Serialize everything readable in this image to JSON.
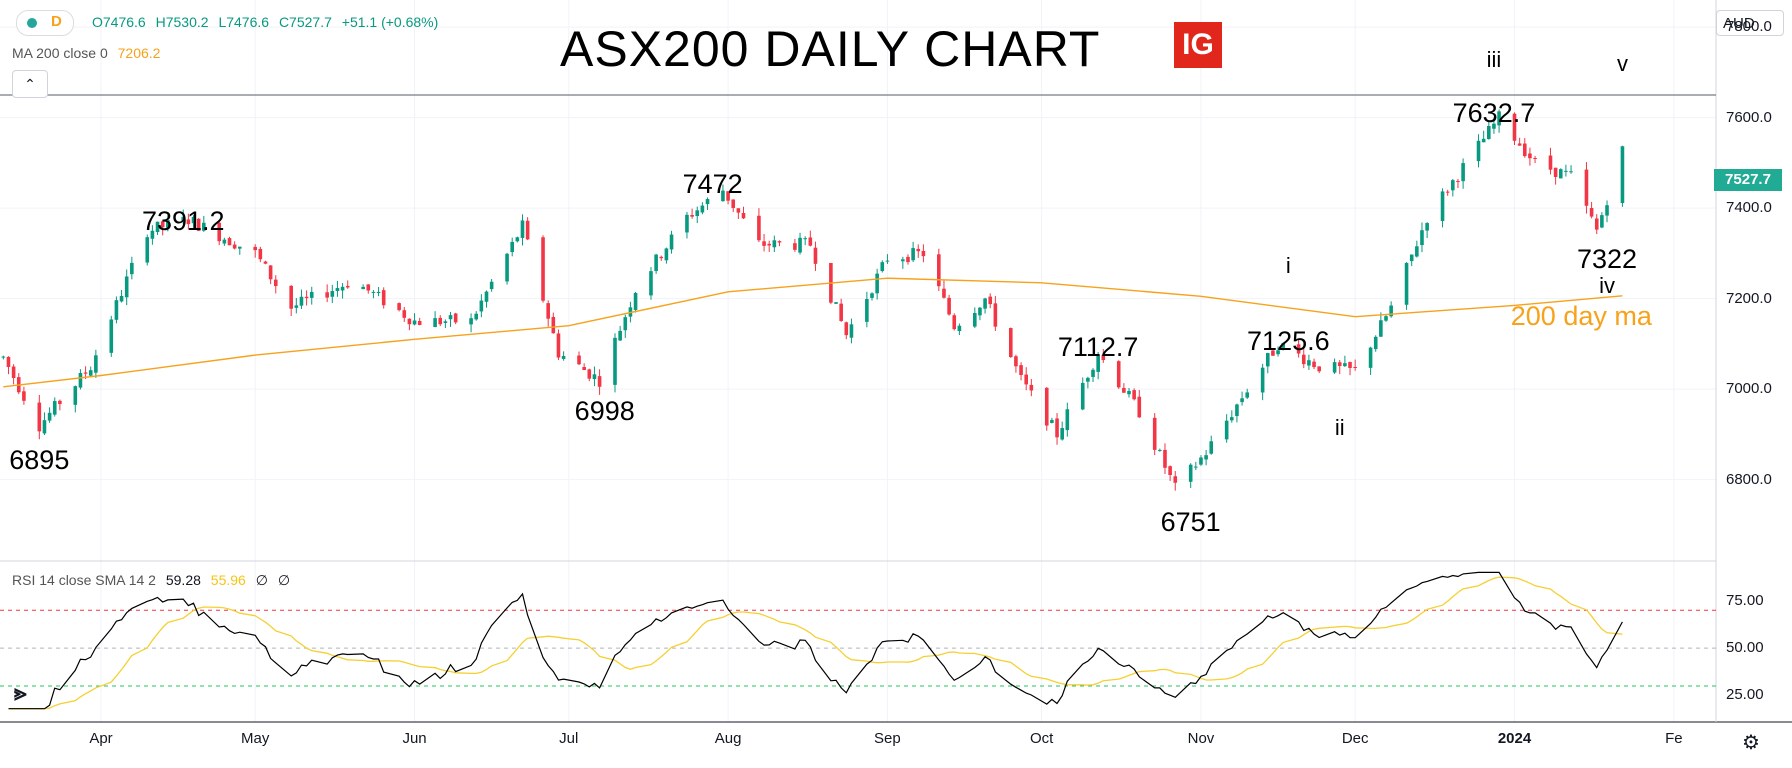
{
  "header": {
    "interval": "D",
    "ohlc": [
      "O7476.6",
      "H7530.2",
      "L7476.6",
      "C7527.7",
      "+51.1 (+0.68%)"
    ],
    "ma_label": "MA 200 close 0",
    "ma_value": "7206.2",
    "title": "ASX200 DAILY CHART",
    "logo": "IG",
    "currency": "AUD",
    "price_tag": "7527.7"
  },
  "rsi_header": {
    "label": "RSI 14 close SMA 14 2",
    "rsi_value": "59.28",
    "sma_value": "55.96",
    "extra1": "∅",
    "extra2": "∅"
  },
  "annotations": [
    {
      "text": "6895"
    },
    {
      "text": "7391.2"
    },
    {
      "text": "6998"
    },
    {
      "text": "7472"
    },
    {
      "text": "7112.7"
    },
    {
      "text": "i"
    },
    {
      "text": "7125.6"
    },
    {
      "text": "ii"
    },
    {
      "text": "6751"
    },
    {
      "text": "iii"
    },
    {
      "text": "7632.7"
    },
    {
      "text": "v"
    },
    {
      "text": "7322"
    },
    {
      "text": "iv"
    },
    {
      "text": "200 day ma"
    }
  ],
  "icons": {
    "collapse": "chevron-up-icon",
    "settings": "gear-icon",
    "brand": "tradingview-logo",
    "status": "green-dot-icon"
  },
  "colors": {
    "up": "#089981",
    "down": "#f23645",
    "ma": "#f7a21b",
    "rsi": "#000000",
    "rsi_sma": "#f5d033"
  },
  "chart_data": [
    {
      "type": "candlestick",
      "title": "ASX200 DAILY CHART",
      "y_ticks": [
        "7800.0",
        "7600.0",
        "7400.0",
        "7200.0",
        "7000.0",
        "6800.0"
      ],
      "ylim": [
        6620,
        7860
      ],
      "x_ticks": [
        "Apr",
        "May",
        "Jun",
        "Jul",
        "Aug",
        "Sep",
        "Oct",
        "Nov",
        "Dec",
        "2024",
        "Fe"
      ],
      "horizontal_line": 7650,
      "pivots": [
        {
          "label": "6895",
          "value": 6895,
          "date": "Mar 20"
        },
        {
          "label": "7391.2",
          "value": 7391.2,
          "date": "Apr 18"
        },
        {
          "label": "6998",
          "value": 6998,
          "date": "Jul 7"
        },
        {
          "label": "7472",
          "value": 7472,
          "date": "Jul 31"
        },
        {
          "label": "7112.7",
          "value": 7112.7,
          "date": "Oct 12"
        },
        {
          "label": "6751",
          "value": 6751,
          "date": "Oct 27"
        },
        {
          "label": "7125.6",
          "value": 7125.6,
          "date": "Nov 16"
        },
        {
          "label": "7632.7",
          "value": 7632.7,
          "date": "Dec 29"
        },
        {
          "label": "7322",
          "value": 7322,
          "date": "Jan 17"
        }
      ],
      "last": {
        "open": 7476.6,
        "high": 7530.2,
        "low": 7476.6,
        "close": 7527.7
      },
      "series": [
        {
          "name": "MA 200 close 0",
          "points": [
            {
              "date": "Mar 13",
              "value": 7005
            },
            {
              "date": "Apr 1",
              "value": 7030
            },
            {
              "date": "May 1",
              "value": 7075
            },
            {
              "date": "Jun 1",
              "value": 7110
            },
            {
              "date": "Jul 1",
              "value": 7140
            },
            {
              "date": "Aug 1",
              "value": 7215
            },
            {
              "date": "Sep 1",
              "value": 7245
            },
            {
              "date": "Oct 1",
              "value": 7235
            },
            {
              "date": "Nov 1",
              "value": 7205
            },
            {
              "date": "Dec 1",
              "value": 7160
            },
            {
              "date": "Jan 1",
              "value": 7185
            },
            {
              "date": "Jan 22",
              "value": 7206.2
            }
          ]
        }
      ]
    },
    {
      "type": "line",
      "title": "RSI 14 close SMA 14 2",
      "y_ticks": [
        "75.00",
        "50.00",
        "25.00"
      ],
      "ylim": [
        11,
        96
      ],
      "levels": {
        "overbought": 70,
        "middle": 50,
        "oversold": 30
      },
      "series": [
        {
          "name": "RSI",
          "last": 59.28
        },
        {
          "name": "SMA",
          "last": 55.96
        }
      ]
    }
  ]
}
